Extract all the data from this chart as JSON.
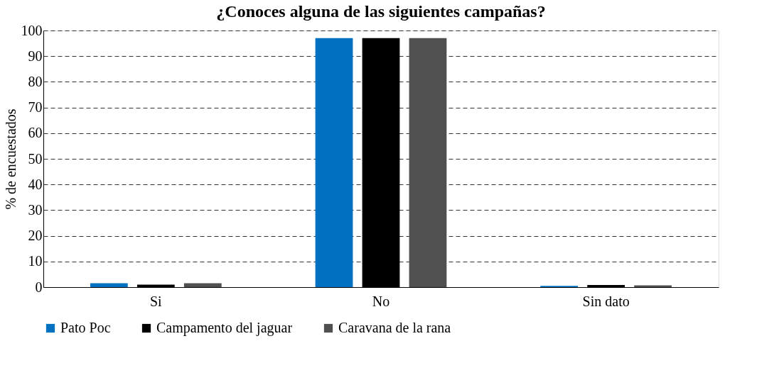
{
  "chart_data": {
    "type": "bar",
    "title": "¿Conoces alguna de las siguientes campañas?",
    "ylabel": "% de encuestados",
    "categories": [
      "Si",
      "No",
      "Sin dato"
    ],
    "series": [
      {
        "name": "Pato Poc",
        "color": "#0070c0",
        "values": [
          1.5,
          97,
          0.5
        ]
      },
      {
        "name": "Campamento del jaguar",
        "color": "#000000",
        "values": [
          1,
          97,
          0.8
        ]
      },
      {
        "name": "Caravana de la rana",
        "color": "#505050",
        "values": [
          1.5,
          97,
          0.7
        ]
      }
    ],
    "ylim": [
      0,
      100
    ],
    "yticks": [
      0,
      10,
      20,
      30,
      40,
      50,
      60,
      70,
      80,
      90,
      100
    ],
    "grid": "y",
    "legend": "bottom"
  }
}
